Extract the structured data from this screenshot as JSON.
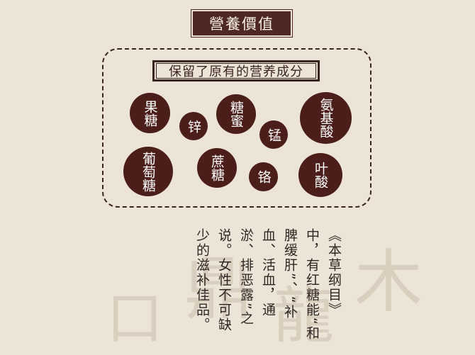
{
  "title": "營養價值",
  "subtitle": "保留了原有的营养成分",
  "nutrients": [
    "果糖",
    "锌",
    "糖蜜",
    "锰",
    "氨基酸",
    "葡萄糖",
    "蔗糖",
    "铬",
    "叶酸"
  ],
  "poem": "《本草纲目》中，有红糖能“和脾缓肝”、“补血、活血，通淤、排恶露”之说。女性不可缺少的滋补佳品。",
  "colors": {
    "circle": "#4b1e1a",
    "background": "#ece4d6",
    "text": "#2f2623"
  }
}
